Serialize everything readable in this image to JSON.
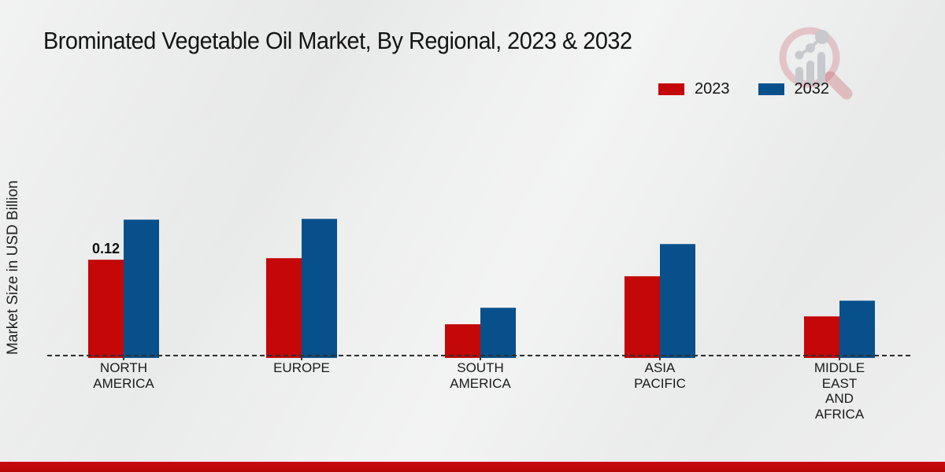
{
  "title": "Brominated Vegetable Oil Market, By Regional, 2023 & 2032",
  "y_axis_label": "Market Size in USD Billion",
  "legend": {
    "items": [
      {
        "label": "2023",
        "color": "#c40707"
      },
      {
        "label": "2032",
        "color": "#07508c"
      }
    ]
  },
  "watermark_icon": "magnifier-bar-chart-logo",
  "footer": {
    "accent_color": "#b90707"
  },
  "chart_data": {
    "type": "bar",
    "title": "Brominated Vegetable Oil Market, By Regional, 2023 & 2032",
    "xlabel": "",
    "ylabel": "Market Size in USD Billion",
    "grid": false,
    "legend_position": "top-right",
    "baseline_style": "dashed",
    "ylim": [
      0,
      0.19
    ],
    "categories": [
      {
        "label": "NORTH AMERICA",
        "lines": [
          "NORTH",
          "AMERICA"
        ]
      },
      {
        "label": "EUROPE",
        "lines": [
          "EUROPE"
        ]
      },
      {
        "label": "SOUTH AMERICA",
        "lines": [
          "SOUTH",
          "AMERICA"
        ]
      },
      {
        "label": "ASIA PACIFIC",
        "lines": [
          "ASIA",
          "PACIFIC"
        ]
      },
      {
        "label": "MIDDLE EAST AND AFRICA",
        "lines": [
          "MIDDLE",
          "EAST",
          "AND",
          "AFRICA"
        ]
      }
    ],
    "series": [
      {
        "name": "2023",
        "color": "#c40707",
        "values": [
          0.12,
          0.122,
          0.039,
          0.099,
          0.049
        ],
        "data_labels": [
          "0.12",
          "",
          "",
          "",
          ""
        ]
      },
      {
        "name": "2032",
        "color": "#07508c",
        "values": [
          0.17,
          0.171,
          0.06,
          0.14,
          0.069
        ],
        "data_labels": [
          "",
          "",
          "",
          "",
          ""
        ]
      }
    ]
  }
}
